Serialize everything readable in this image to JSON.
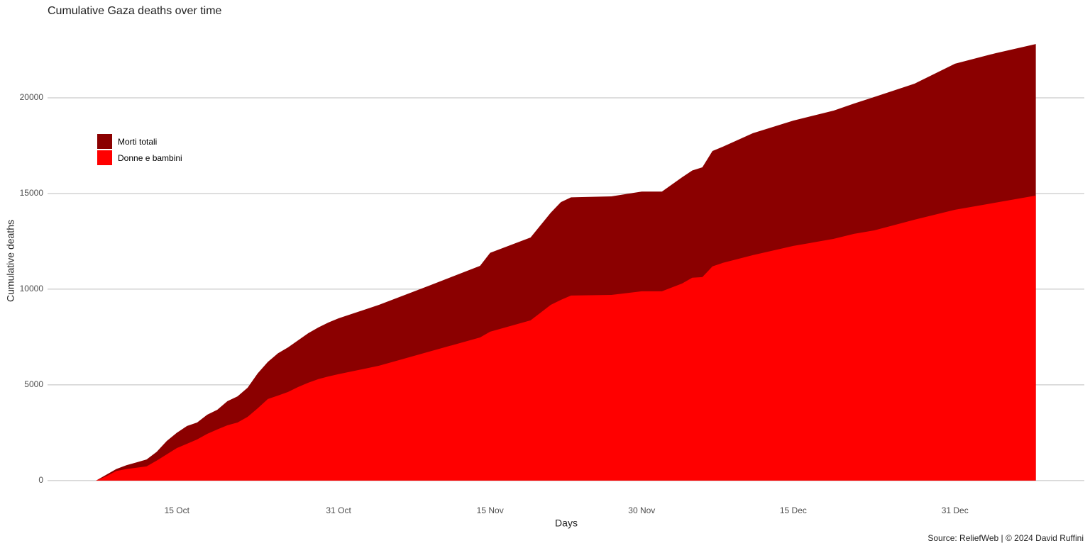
{
  "chart_data": {
    "type": "area",
    "title": "Cumulative Gaza deaths over time",
    "x_label": "Days",
    "y_label": "Cumulative deaths",
    "caption": "Source: ReliefWeb | © 2024 David Ruffini",
    "x": [
      7,
      8,
      9,
      10,
      11,
      12,
      13,
      14,
      15,
      16,
      17,
      18,
      19,
      20,
      21,
      22,
      23,
      24,
      25,
      26,
      27,
      28,
      29,
      30,
      31,
      35,
      40,
      45,
      46,
      50,
      52,
      53,
      54,
      58,
      61,
      63,
      65,
      66,
      67,
      68,
      69,
      72,
      76,
      80,
      82,
      84,
      88,
      92,
      96,
      100
    ],
    "series": [
      {
        "name": "Morti totali",
        "color": "#8b0000",
        "values": [
          0,
          300,
          600,
          800,
          950,
          1100,
          1500,
          2070,
          2500,
          2850,
          3030,
          3440,
          3700,
          4150,
          4400,
          4850,
          5600,
          6200,
          6650,
          6960,
          7330,
          7700,
          8000,
          8260,
          8480,
          9180,
          10190,
          11220,
          11900,
          12700,
          14000,
          14550,
          14800,
          14850,
          15100,
          15100,
          15850,
          16200,
          16370,
          17220,
          17440,
          18150,
          18810,
          19330,
          19700,
          20040,
          20740,
          21780,
          22330,
          22810
        ]
      },
      {
        "name": "Donne e bambini",
        "color": "#ff0000",
        "values": [
          0,
          220,
          500,
          600,
          670,
          740,
          1040,
          1370,
          1700,
          1920,
          2150,
          2440,
          2670,
          2890,
          3030,
          3330,
          3780,
          4260,
          4440,
          4630,
          4890,
          5110,
          5300,
          5440,
          5560,
          6000,
          6740,
          7480,
          7780,
          8370,
          9180,
          9440,
          9670,
          9700,
          9890,
          9890,
          10300,
          10600,
          10630,
          11190,
          11370,
          11780,
          12260,
          12630,
          12890,
          13070,
          13630,
          14150,
          14520,
          14890
        ]
      }
    ],
    "xlim": [
      2.2,
      104.8
    ],
    "xticks": [
      {
        "value": 15,
        "label": "15 Oct"
      },
      {
        "value": 31,
        "label": "31 Oct"
      },
      {
        "value": 46,
        "label": "15 Nov"
      },
      {
        "value": 61,
        "label": "30 Nov"
      },
      {
        "value": 76,
        "label": "15 Dec"
      },
      {
        "value": 92,
        "label": "31 Dec"
      }
    ],
    "ylim": [
      -450,
      24000
    ],
    "yticks": [
      0,
      5000,
      10000,
      15000,
      20000
    ],
    "grid": true,
    "legend": "top-left"
  }
}
